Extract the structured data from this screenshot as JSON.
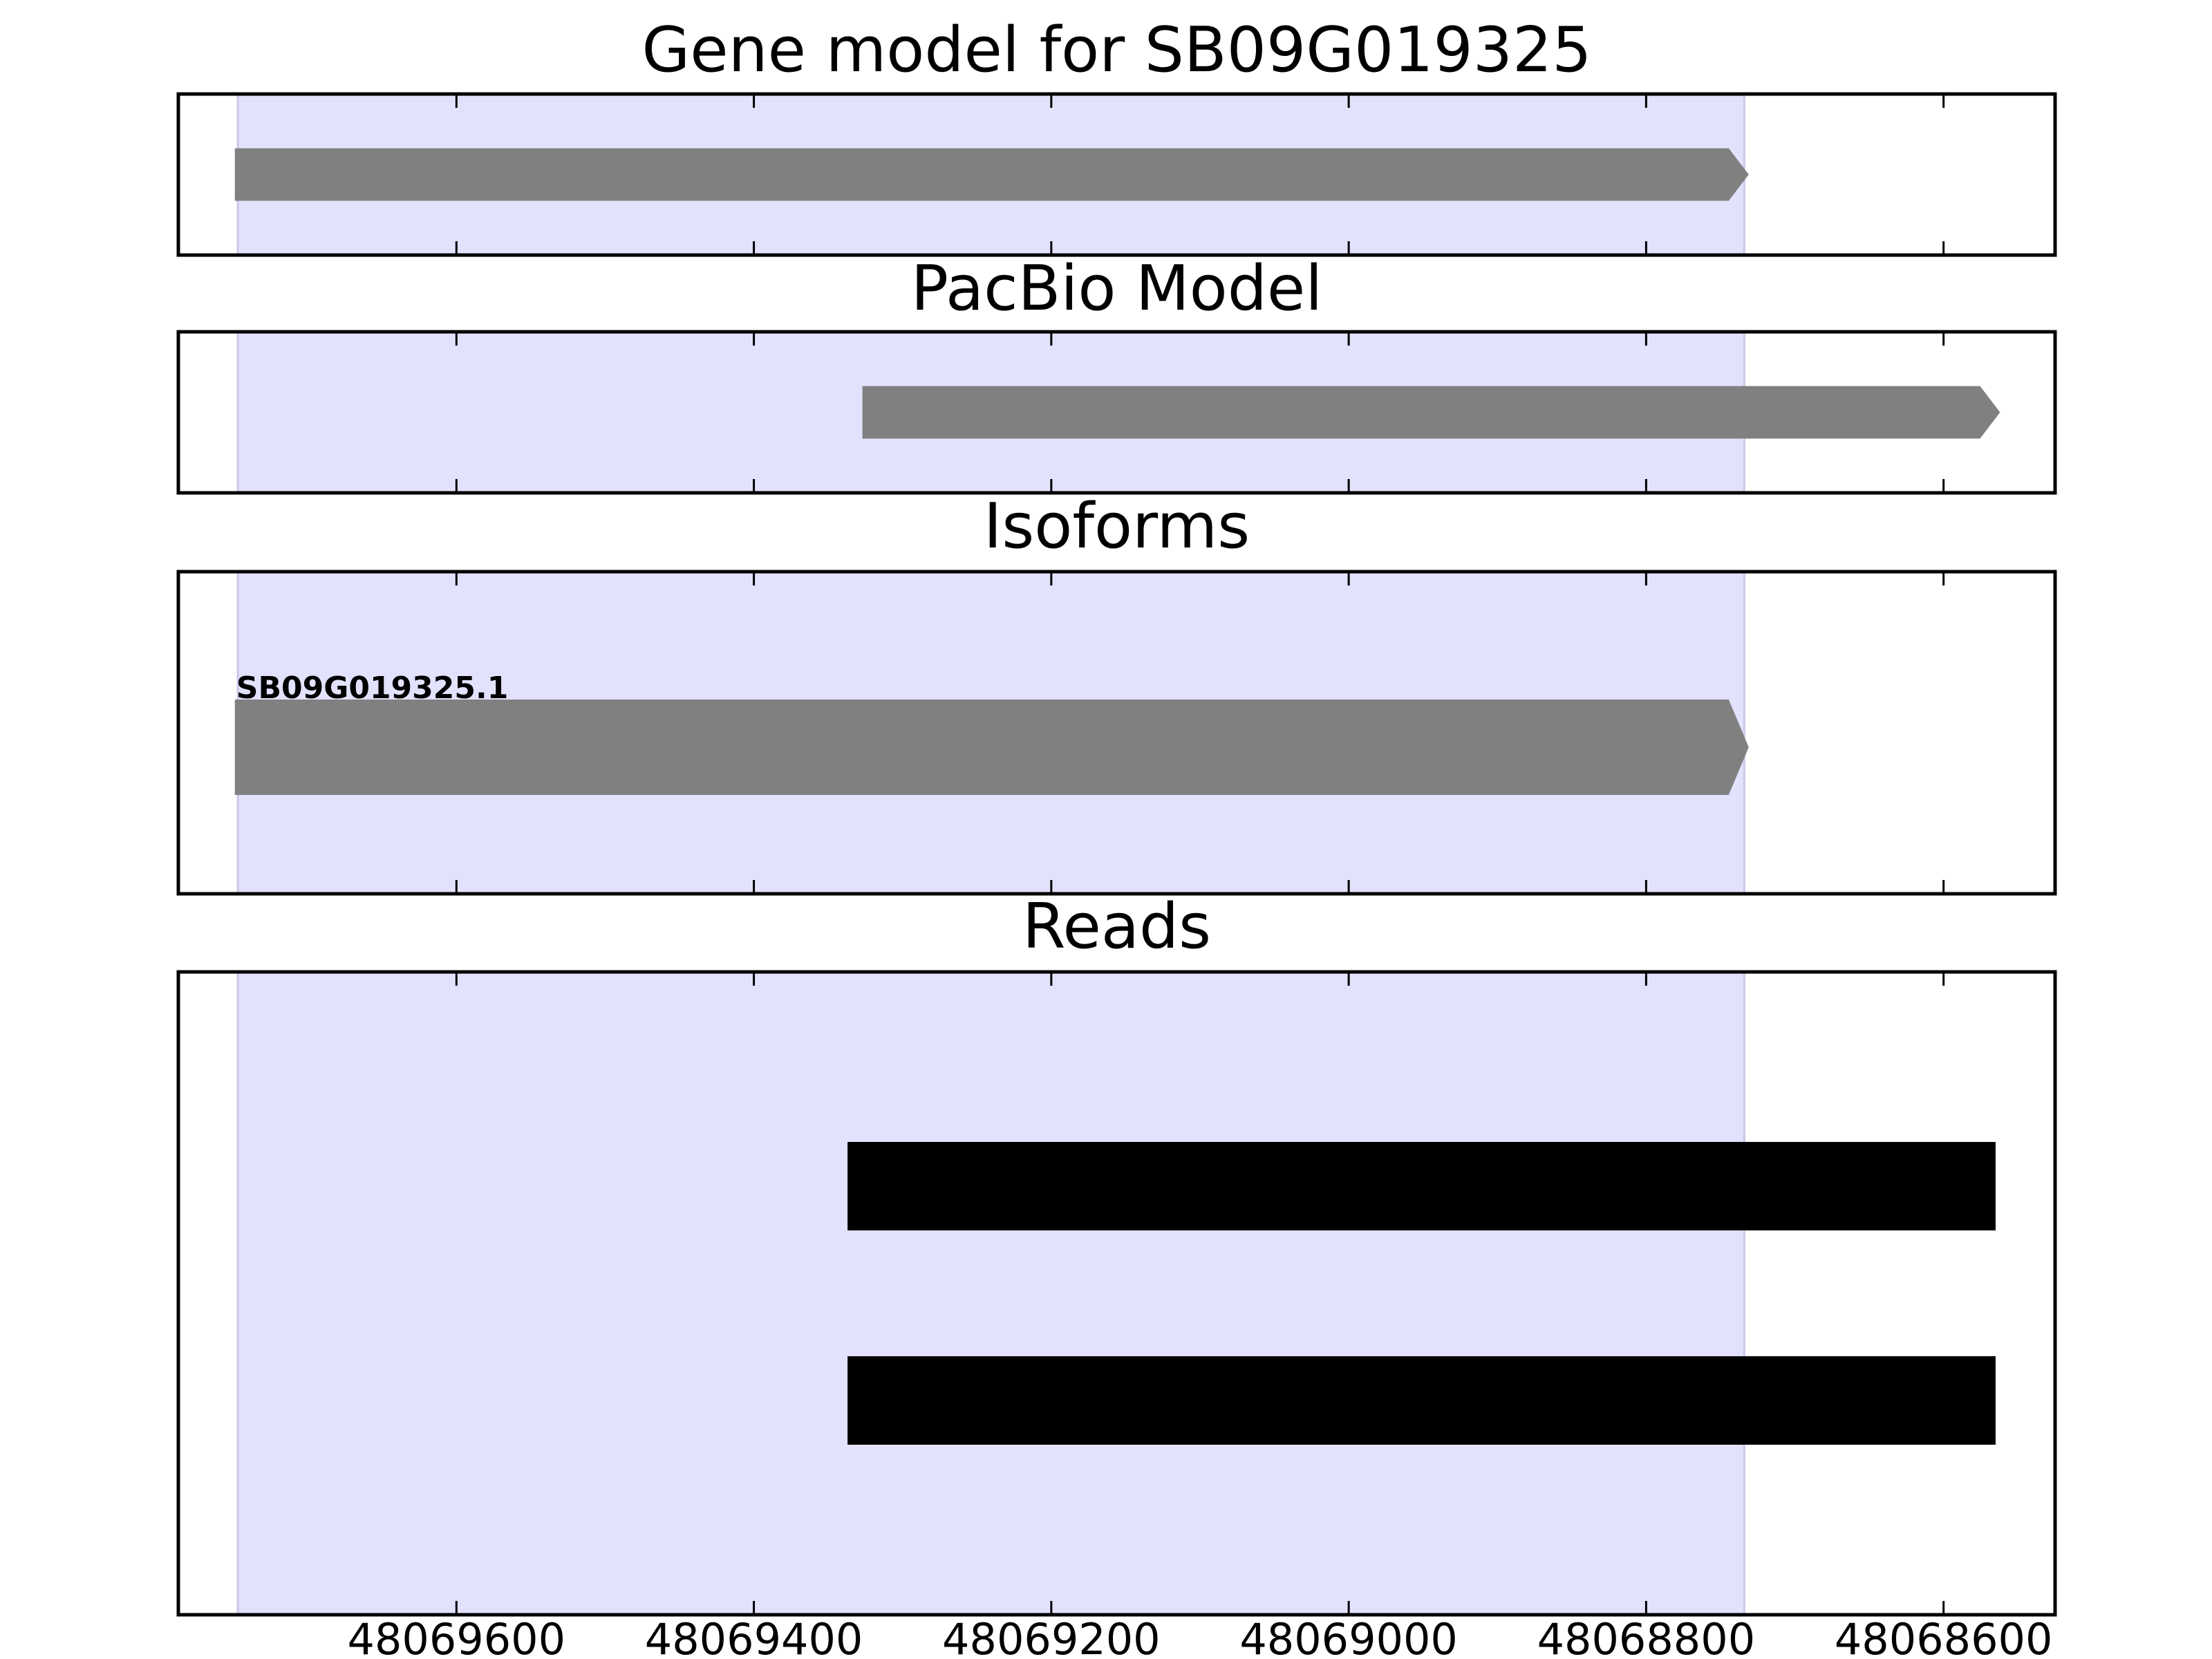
{
  "chart_data": [
    {
      "type": "track",
      "title": "Gene model for SB09G019325",
      "shape": "arrow",
      "color": "#808080",
      "highlight": [
        48069747,
        48068734
      ],
      "highlight_color": "#e2e2fd",
      "features": [
        {
          "start": 48069749,
          "end": 48068731
        }
      ],
      "xlim": [
        48069787,
        48068525
      ],
      "xticks": [
        48069600,
        48069400,
        48069200,
        48069000,
        48068800,
        48068600
      ],
      "tick_labels": false
    },
    {
      "type": "track",
      "title": "PacBio Model",
      "shape": "arrow",
      "color": "#808080",
      "highlight": [
        48069747,
        48068734
      ],
      "highlight_color": "#e2e2fd",
      "features": [
        {
          "start": 48069327,
          "end": 48068562
        }
      ],
      "xlim": [
        48069787,
        48068525
      ],
      "xticks": [
        48069600,
        48069400,
        48069200,
        48069000,
        48068800,
        48068600
      ],
      "tick_labels": false
    },
    {
      "type": "track",
      "title": "Isoforms",
      "shape": "arrow",
      "color": "#808080",
      "highlight": [
        48069747,
        48068734
      ],
      "highlight_color": "#e2e2fd",
      "features": [
        {
          "label": "SB09G019325.1",
          "start": 48069749,
          "end": 48068731
        }
      ],
      "xlim": [
        48069787,
        48068525
      ],
      "xticks": [
        48069600,
        48069400,
        48069200,
        48069000,
        48068800,
        48068600
      ],
      "tick_labels": false
    },
    {
      "type": "track",
      "title": "Reads",
      "shape": "bar",
      "color": "#000000",
      "highlight": [
        48069747,
        48068734
      ],
      "highlight_color": "#e2e2fd",
      "features": [
        {
          "start": 48069337,
          "end": 48068565
        },
        {
          "start": 48069337,
          "end": 48068565
        }
      ],
      "xlim": [
        48069787,
        48068525
      ],
      "xticks": [
        48069600,
        48069400,
        48069200,
        48069000,
        48068800,
        48068600
      ],
      "tick_labels": true
    }
  ]
}
